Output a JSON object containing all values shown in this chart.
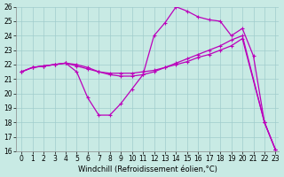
{
  "xlabel": "Windchill (Refroidissement éolien,°C)",
  "background_color": "#c8eae4",
  "grid_color": "#a0cccc",
  "line_color": "#bb00bb",
  "xlim_min": -0.5,
  "xlim_max": 23.3,
  "ylim_min": 16,
  "ylim_max": 26,
  "xticks": [
    0,
    1,
    2,
    3,
    4,
    5,
    6,
    7,
    8,
    9,
    10,
    11,
    12,
    13,
    14,
    15,
    16,
    17,
    18,
    19,
    20,
    21,
    22,
    23
  ],
  "yticks": [
    16,
    17,
    18,
    19,
    20,
    21,
    22,
    23,
    24,
    25,
    26
  ],
  "curve1_x": [
    0,
    1,
    2,
    3,
    4,
    5,
    6,
    7,
    8,
    9,
    10,
    11,
    12,
    13,
    14,
    15,
    16,
    17,
    18,
    19,
    20,
    22,
    23
  ],
  "curve1_y": [
    21.5,
    21.8,
    21.9,
    22.0,
    22.1,
    21.9,
    21.7,
    21.5,
    21.4,
    21.4,
    21.4,
    21.5,
    21.6,
    21.8,
    22.0,
    22.2,
    22.5,
    22.7,
    23.0,
    23.3,
    23.8,
    18.0,
    16.1
  ],
  "curve2_x": [
    0,
    1,
    2,
    3,
    4,
    5,
    6,
    7,
    8,
    9,
    10,
    11,
    12,
    13,
    14,
    15,
    16,
    17,
    18,
    19,
    20,
    22,
    23
  ],
  "curve2_y": [
    21.5,
    21.8,
    21.9,
    22.0,
    22.1,
    22.0,
    21.8,
    21.5,
    21.3,
    21.2,
    21.2,
    21.3,
    21.5,
    21.8,
    22.1,
    22.4,
    22.7,
    23.0,
    23.3,
    23.7,
    24.0,
    18.0,
    16.1
  ],
  "curve3_x": [
    0,
    1,
    2,
    3,
    4,
    5,
    6,
    7,
    8,
    9,
    10,
    11,
    12,
    13,
    14,
    15,
    16,
    17,
    18,
    19,
    20,
    21,
    22,
    23
  ],
  "curve3_y": [
    21.5,
    21.8,
    21.9,
    22.0,
    22.1,
    21.5,
    19.7,
    18.5,
    18.5,
    19.3,
    20.3,
    21.3,
    24.0,
    24.9,
    26.0,
    25.7,
    25.3,
    25.1,
    25.0,
    24.0,
    24.5,
    22.6,
    18.0,
    16.1
  ],
  "linewidth": 0.9,
  "markersize": 2.5,
  "tick_fontsize": 5.5,
  "xlabel_fontsize": 6.0
}
